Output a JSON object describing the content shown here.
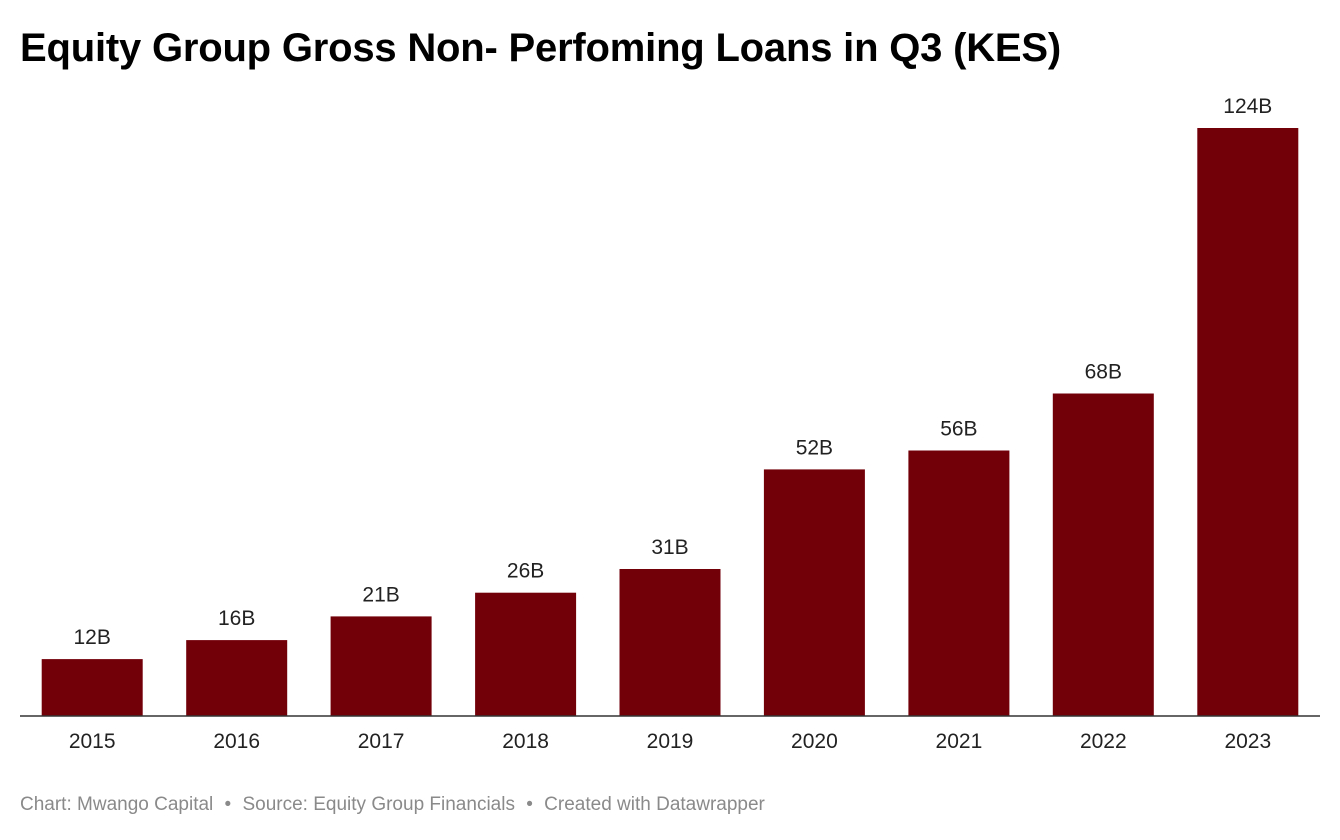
{
  "chart_data": {
    "type": "bar",
    "title": "Equity Group Gross Non- Perfoming Loans in Q3 (KES)",
    "xlabel": "",
    "ylabel": "",
    "categories": [
      "2015",
      "2016",
      "2017",
      "2018",
      "2019",
      "2020",
      "2021",
      "2022",
      "2023"
    ],
    "values": [
      12,
      16,
      21,
      26,
      31,
      52,
      56,
      68,
      124
    ],
    "value_labels": [
      "12B",
      "16B",
      "21B",
      "26B",
      "31B",
      "52B",
      "56B",
      "68B",
      "124B"
    ],
    "ylim": [
      0,
      124
    ],
    "grid": false,
    "legend": "none",
    "bar_color": "#720009"
  },
  "footer": {
    "chart_by": "Chart: Mwango Capital",
    "source": "Source: Equity Group Financials",
    "created_with": "Created with Datawrapper",
    "separator": "•"
  }
}
